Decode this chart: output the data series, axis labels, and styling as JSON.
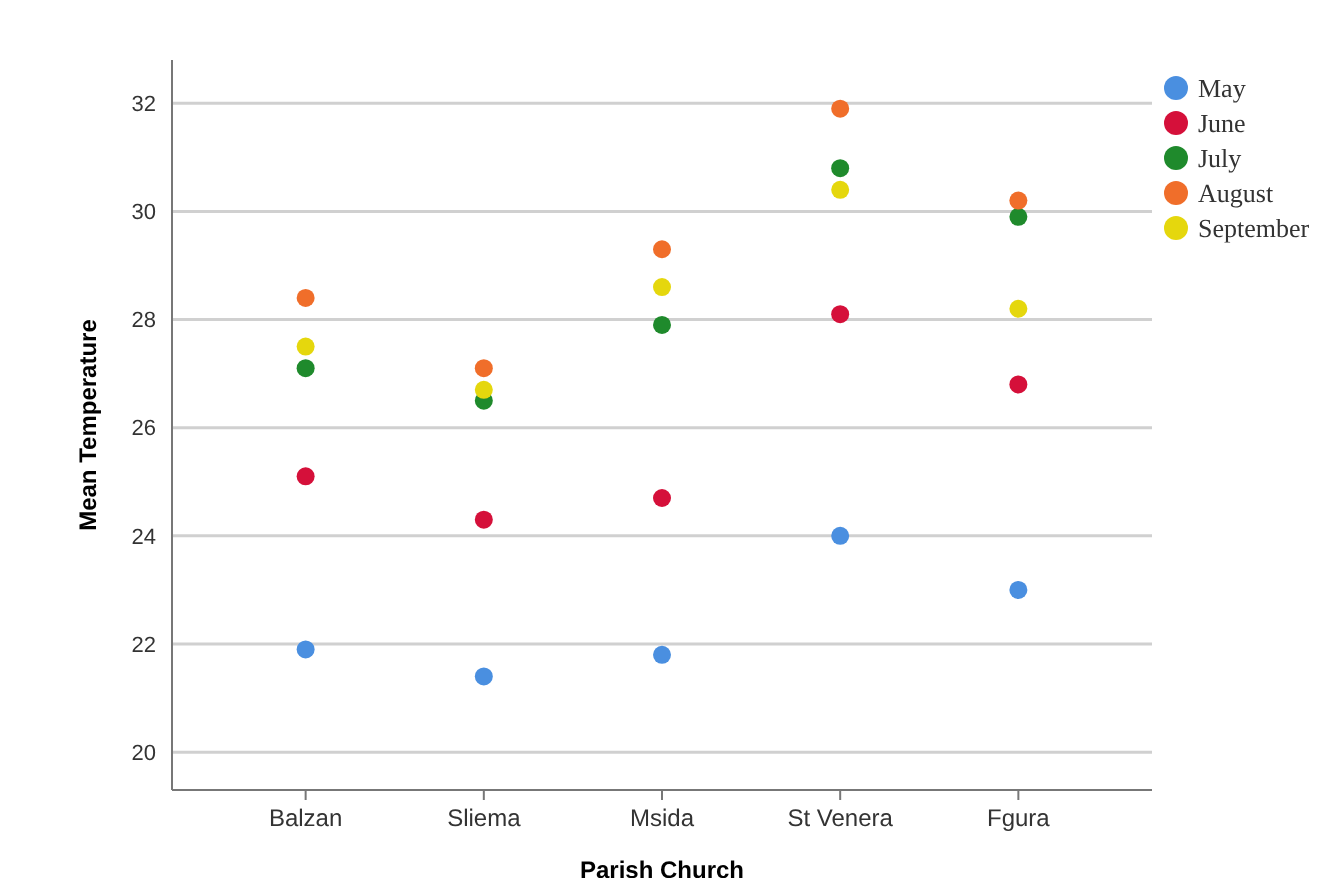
{
  "chart_data": {
    "type": "scatter",
    "xlabel": "Parish Church",
    "ylabel": "Mean Temperature",
    "categories": [
      "Balzan",
      "Sliema",
      "Msida",
      "St  Venera",
      "Fgura"
    ],
    "ylim": [
      19.3,
      32.8
    ],
    "yticks": [
      20,
      22,
      24,
      26,
      28,
      30,
      32
    ],
    "grid": "y",
    "legend": "top right",
    "marker": "circle",
    "series": [
      {
        "name": "May",
        "color": "#4a8fe0",
        "values": [
          21.9,
          21.4,
          21.8,
          24.0,
          23.0
        ]
      },
      {
        "name": "June",
        "color": "#d5103a",
        "values": [
          25.1,
          24.3,
          24.7,
          28.1,
          26.8
        ]
      },
      {
        "name": "July",
        "color": "#1f8a2c",
        "values": [
          27.1,
          26.5,
          27.9,
          30.8,
          29.9
        ]
      },
      {
        "name": "August",
        "color": "#f06e2a",
        "values": [
          28.4,
          27.1,
          29.3,
          31.9,
          30.2
        ]
      },
      {
        "name": "September",
        "color": "#e5d70d",
        "values": [
          27.5,
          26.7,
          28.6,
          30.4,
          28.2
        ]
      }
    ]
  }
}
